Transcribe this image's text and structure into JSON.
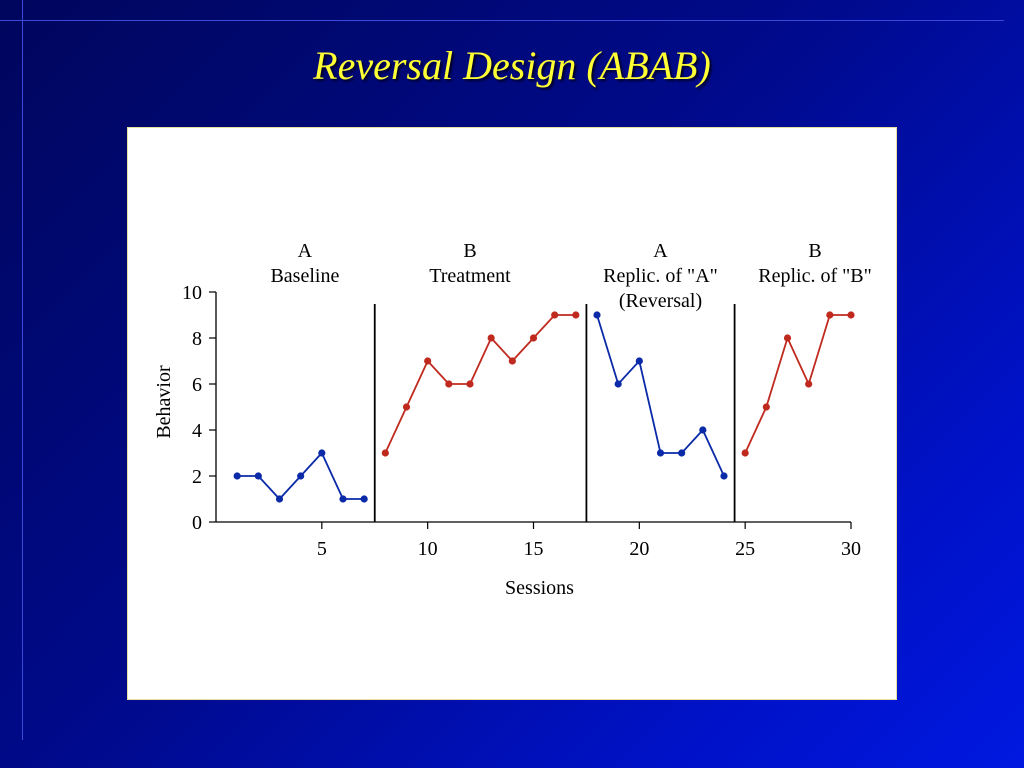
{
  "slide": {
    "title": "Reversal Design (ABAB)"
  },
  "colors": {
    "background": "#000a8a",
    "title": "#ffff33",
    "series_A": "#0a2aa8",
    "series_B": "#c02a1e"
  },
  "chart_data": {
    "type": "line",
    "xlabel": "Sessions",
    "ylabel": "Behavior",
    "xlim": [
      0,
      30
    ],
    "ylim": [
      0,
      10
    ],
    "xticks": [
      5,
      10,
      15,
      20,
      25,
      30
    ],
    "yticks": [
      0,
      2,
      4,
      6,
      8,
      10
    ],
    "phase_dividers": [
      7.5,
      17.5,
      24.5
    ],
    "phases": [
      {
        "letter": "A",
        "label": "Baseline",
        "sublabel": "",
        "center": 4.2
      },
      {
        "letter": "B",
        "label": "Treatment",
        "sublabel": "",
        "center": 12.0
      },
      {
        "letter": "A",
        "label": "Replic. of \"A\"",
        "sublabel": "(Reversal)",
        "center": 21.0
      },
      {
        "letter": "B",
        "label": "Replic. of \"B\"",
        "sublabel": "",
        "center": 28.3
      }
    ],
    "series": [
      {
        "phase": "A",
        "color": "#0a2aa8",
        "x": [
          1,
          2,
          3,
          4,
          5,
          6,
          7
        ],
        "y": [
          2,
          2,
          1,
          2,
          3,
          1,
          1
        ]
      },
      {
        "phase": "B",
        "color": "#c02a1e",
        "x": [
          8,
          9,
          10,
          11,
          12,
          13,
          14,
          15,
          16,
          17
        ],
        "y": [
          3,
          5,
          7,
          6,
          6,
          8,
          7,
          8,
          9,
          9
        ]
      },
      {
        "phase": "A",
        "color": "#0a2aa8",
        "x": [
          18,
          19,
          20,
          21,
          22,
          23,
          24
        ],
        "y": [
          9,
          6,
          7,
          3,
          3,
          4,
          2
        ]
      },
      {
        "phase": "B",
        "color": "#c02a1e",
        "x": [
          25,
          26,
          27,
          28,
          29,
          30
        ],
        "y": [
          3,
          5,
          8,
          6,
          9,
          9
        ]
      }
    ]
  }
}
